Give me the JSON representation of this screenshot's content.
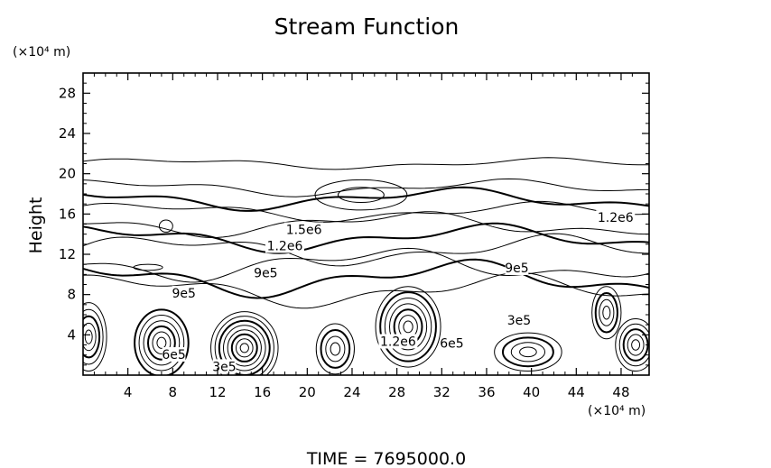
{
  "chart_data": {
    "type": "contour",
    "title": "Stream Function",
    "ylabel": "Height",
    "xunit": "(×10⁴ m)",
    "yunit": "(×10⁴ m)",
    "footer": "TIME  =  7695000.0",
    "xlim": [
      0,
      50.5
    ],
    "ylim": [
      0,
      30
    ],
    "xticks": [
      4,
      8,
      12,
      16,
      20,
      24,
      28,
      32,
      36,
      40,
      44,
      48
    ],
    "yticks": [
      4,
      8,
      12,
      16,
      20,
      24,
      28
    ],
    "grid": false,
    "contour_labels": [
      {
        "text": "1.5e6",
        "x": 19.7,
        "y": 14.1
      },
      {
        "text": "1.2e6",
        "x": 18.0,
        "y": 12.5
      },
      {
        "text": "1.2e6",
        "x": 47.5,
        "y": 15.3
      },
      {
        "text": "9e5",
        "x": 16.3,
        "y": 9.8
      },
      {
        "text": "9e5",
        "x": 9.0,
        "y": 7.8
      },
      {
        "text": "9e5",
        "x": 38.7,
        "y": 10.3
      },
      {
        "text": "6e5",
        "x": 8.1,
        "y": 1.7
      },
      {
        "text": "6e5",
        "x": 32.9,
        "y": 2.8
      },
      {
        "text": "3e5",
        "x": 38.9,
        "y": 5.1
      },
      {
        "text": "1.2e6",
        "x": 28.1,
        "y": 3.0
      },
      {
        "text": "3e5",
        "x": 12.6,
        "y": 0.5
      }
    ],
    "eddies": [
      {
        "x": 0.5,
        "y": 3.8,
        "rx": 1.6,
        "ry": 3.4,
        "n": 5
      },
      {
        "x": 7.0,
        "y": 3.2,
        "rx": 2.4,
        "ry": 3.3,
        "n": 6
      },
      {
        "x": 14.4,
        "y": 2.7,
        "rx": 3.0,
        "ry": 3.6,
        "n": 8
      },
      {
        "x": 22.5,
        "y": 2.6,
        "rx": 1.7,
        "ry": 2.5,
        "n": 4
      },
      {
        "x": 29.0,
        "y": 4.8,
        "rx": 2.9,
        "ry": 4.0,
        "n": 7
      },
      {
        "x": 39.7,
        "y": 2.3,
        "rx": 3.0,
        "ry": 1.9,
        "n": 4
      },
      {
        "x": 46.7,
        "y": 6.2,
        "rx": 1.3,
        "ry": 2.6,
        "n": 4
      },
      {
        "x": 49.3,
        "y": 3.0,
        "rx": 1.8,
        "ry": 2.6,
        "n": 5
      },
      {
        "x": 24.8,
        "y": 17.9,
        "rx": 4.1,
        "ry": 1.5,
        "n": 2
      },
      {
        "x": 7.4,
        "y": 14.8,
        "rx": 0.6,
        "ry": 0.6,
        "n": 1
      },
      {
        "x": 5.8,
        "y": 10.7,
        "rx": 1.3,
        "ry": 0.3,
        "n": 1
      }
    ],
    "bands": [
      {
        "y": 21.0,
        "amp": 0.4,
        "ph": 0.3,
        "w": 1
      },
      {
        "y": 18.6,
        "amp": 0.6,
        "ph": 1.1,
        "w": 1
      },
      {
        "y": 17.5,
        "amp": 0.8,
        "ph": 2.0,
        "w": 2
      },
      {
        "y": 16.2,
        "amp": 0.7,
        "ph": 0.5,
        "w": 1
      },
      {
        "y": 15.0,
        "amp": 0.9,
        "ph": 2.7,
        "w": 1
      },
      {
        "y": 13.6,
        "amp": 1.0,
        "ph": 1.4,
        "w": 2
      },
      {
        "y": 12.4,
        "amp": 1.1,
        "ph": 0.2,
        "w": 1
      },
      {
        "y": 11.0,
        "amp": 1.2,
        "ph": 3.1,
        "w": 1
      },
      {
        "y": 9.6,
        "amp": 1.3,
        "ph": 1.8,
        "w": 2
      },
      {
        "y": 8.4,
        "amp": 1.2,
        "ph": 0.9,
        "w": 1
      }
    ]
  }
}
